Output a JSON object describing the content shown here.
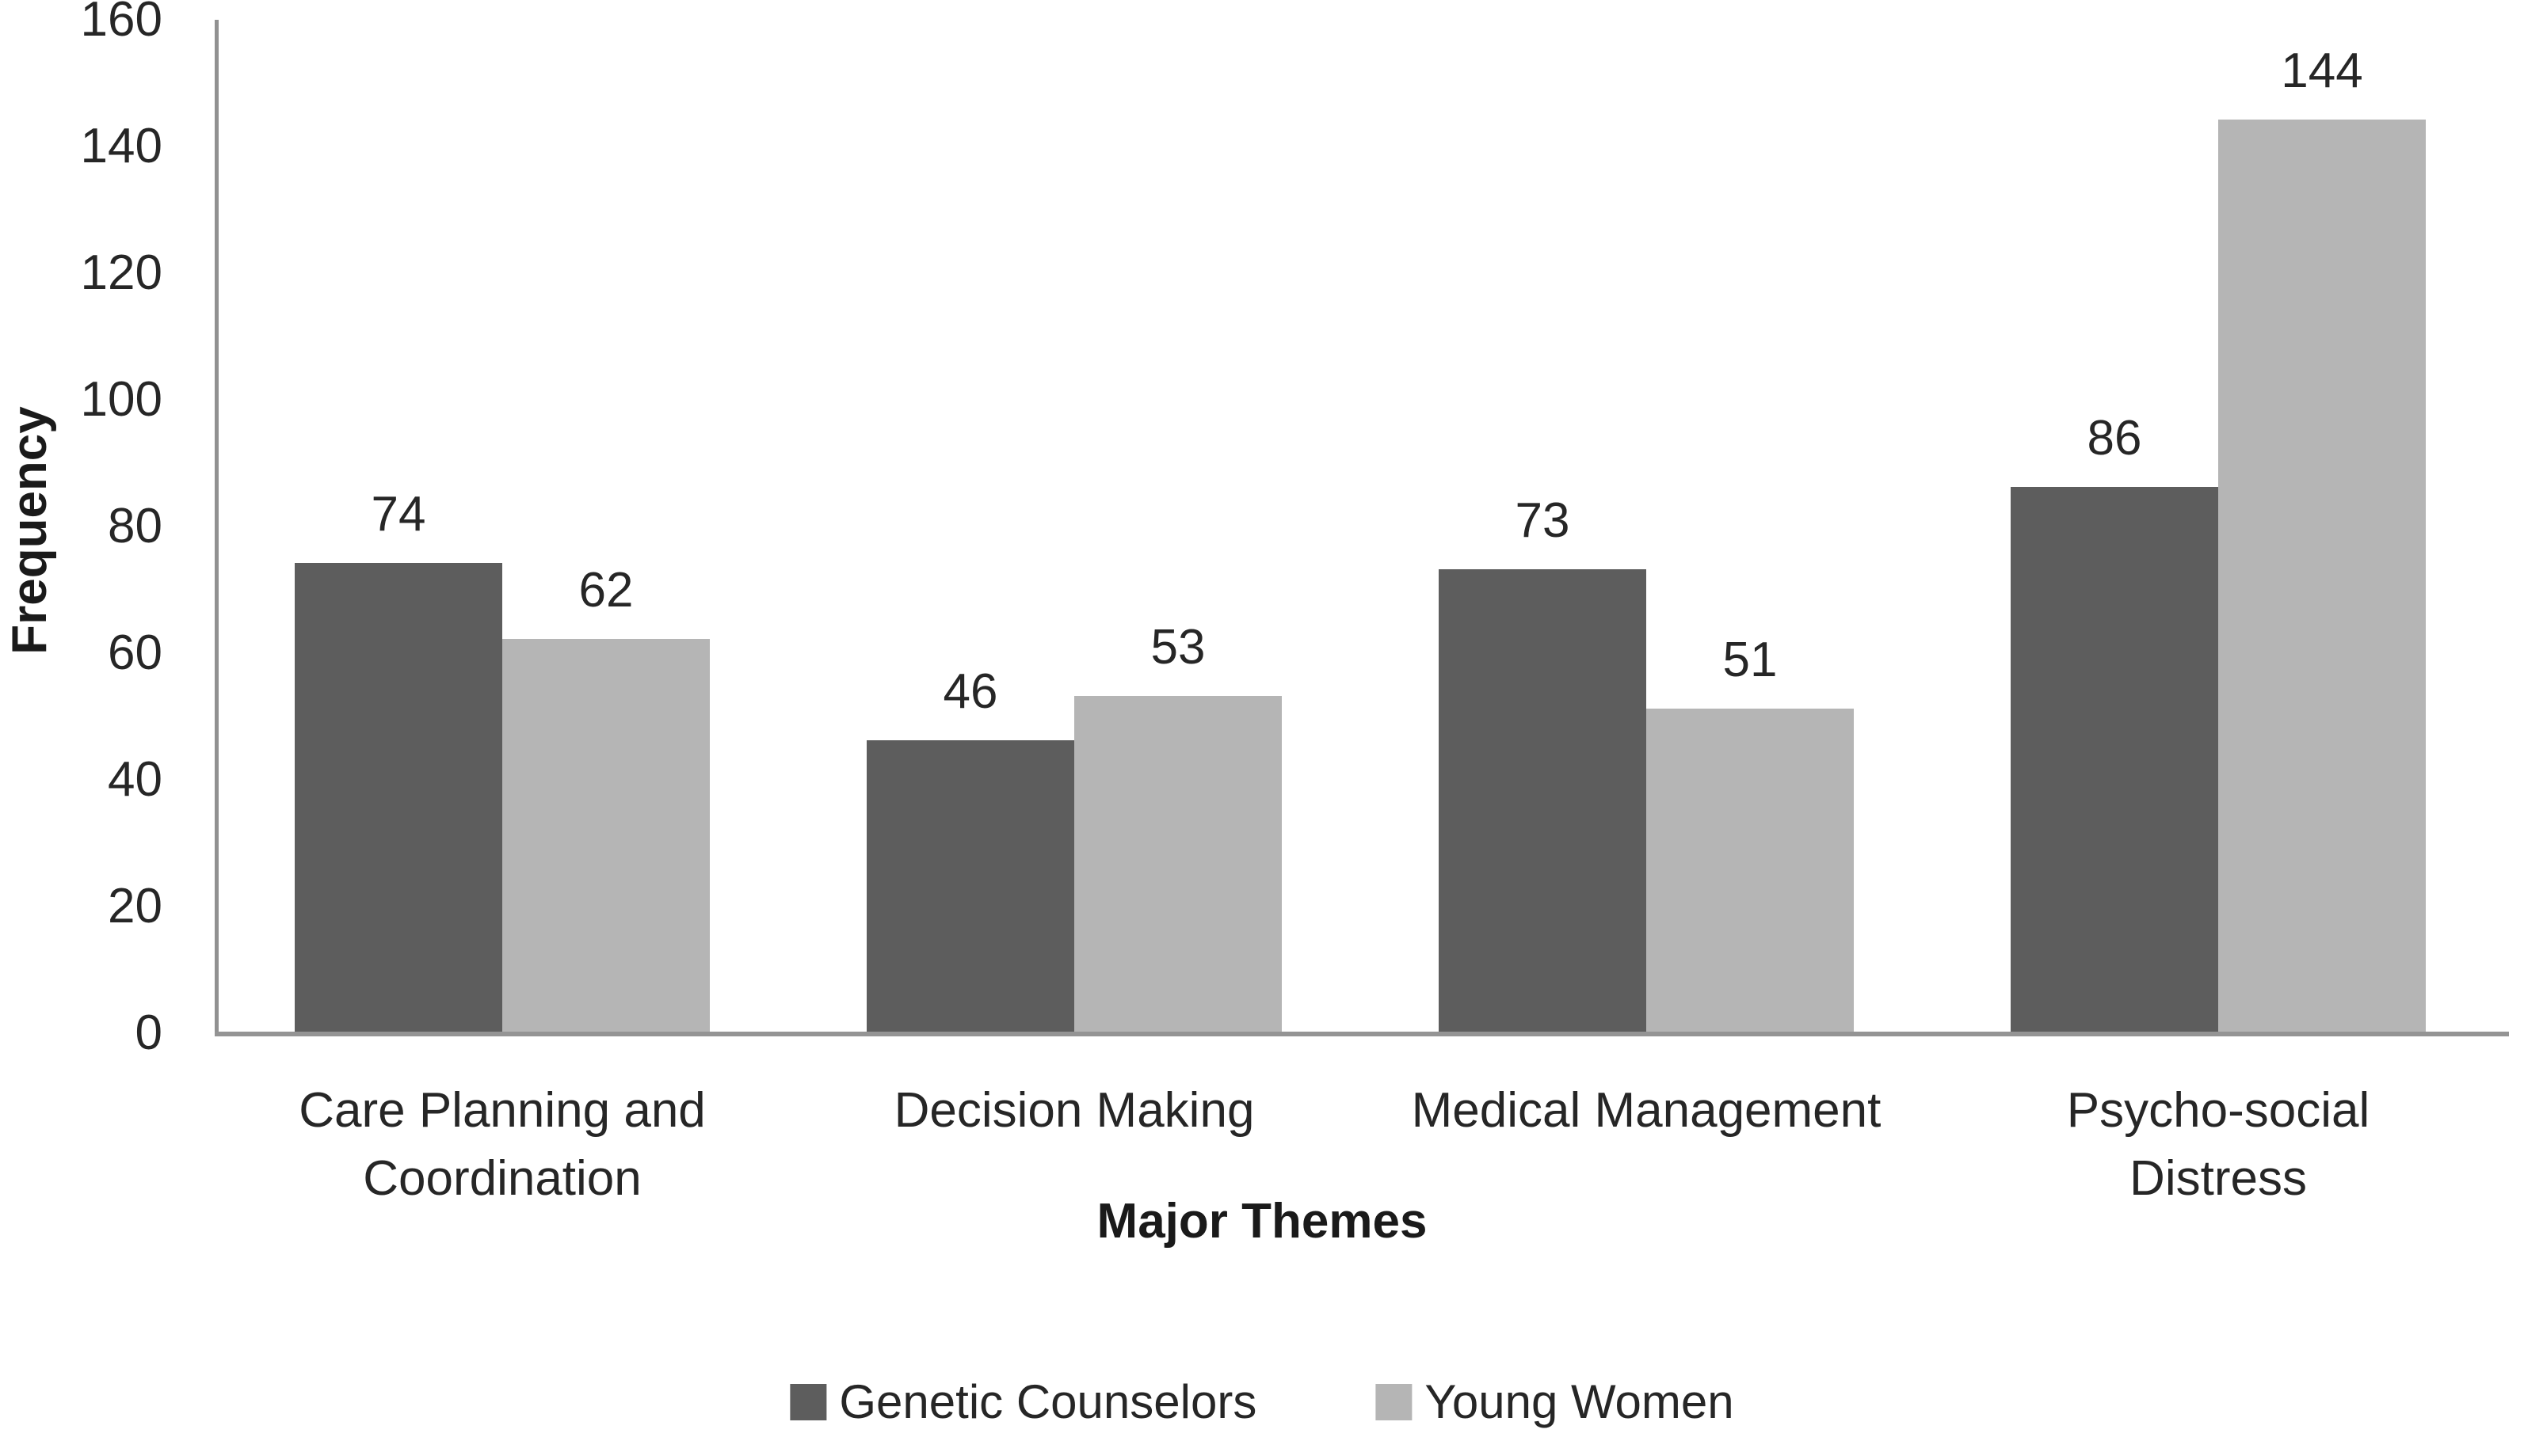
{
  "chart_data": {
    "type": "bar",
    "title": "",
    "xlabel": "Major Themes",
    "ylabel": "Frequency",
    "categories": [
      "Care Planning and Coordination",
      "Decision Making",
      "Medical Management",
      "Psycho-social Distress"
    ],
    "series": [
      {
        "name": "Genetic Counselors",
        "color": "#5d5d5d",
        "values": [
          74,
          46,
          73,
          86
        ]
      },
      {
        "name": "Young Women",
        "color": "#b5b5b5",
        "values": [
          62,
          53,
          51,
          144
        ]
      }
    ],
    "ylim": [
      0,
      160
    ],
    "ytick_step": 20,
    "yticks": [
      0,
      20,
      40,
      60,
      80,
      100,
      120,
      140,
      160
    ],
    "grid": false,
    "bar_value_labels": true,
    "legend_position": "bottom"
  },
  "colors": {
    "axis_line": "#949494",
    "text": "#262626"
  }
}
